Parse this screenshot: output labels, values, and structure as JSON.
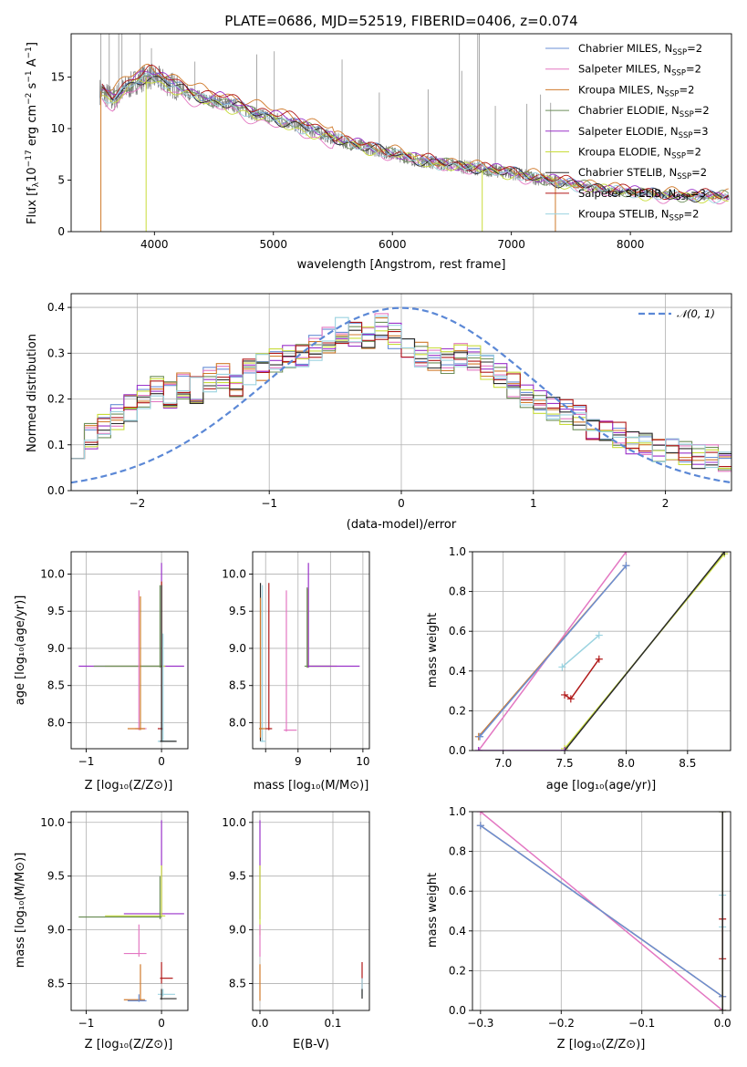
{
  "colors": {
    "chabrier_miles": "#6a8fd6",
    "salpeter_miles": "#e377c2",
    "kroupa_miles": "#d07a2b",
    "chabrier_elodie": "#6e8f5a",
    "salpeter_elodie": "#9a32c9",
    "kroupa_elodie": "#c8dc3a",
    "chabrier_stelib": "#2a2a2a",
    "salpeter_stelib": "#b01818",
    "kroupa_stelib": "#9bd3e0",
    "observed": "#808080",
    "gauss": "#5b88d6"
  },
  "legend_spectrum": [
    {
      "base": "Chabrier MILES, N",
      "sub": "SSP",
      "tail": "=2",
      "color_key": "chabrier_miles"
    },
    {
      "base": "Salpeter MILES, N",
      "sub": "SSP",
      "tail": "=2",
      "color_key": "salpeter_miles"
    },
    {
      "base": "Kroupa MILES, N",
      "sub": "SSP",
      "tail": "=2",
      "color_key": "kroupa_miles"
    },
    {
      "base": "Chabrier ELODIE, N",
      "sub": "SSP",
      "tail": "=2",
      "color_key": "chabrier_elodie"
    },
    {
      "base": "Salpeter ELODIE, N",
      "sub": "SSP",
      "tail": "=3",
      "color_key": "salpeter_elodie"
    },
    {
      "base": "Kroupa ELODIE, N",
      "sub": "SSP",
      "tail": "=2",
      "color_key": "kroupa_elodie"
    },
    {
      "base": "Chabrier STELIB, N",
      "sub": "SSP",
      "tail": "=2",
      "color_key": "chabrier_stelib"
    },
    {
      "base": "Salpeter STELIB, N",
      "sub": "SSP",
      "tail": "=3",
      "color_key": "salpeter_stelib"
    },
    {
      "base": "Kroupa STELIB, N",
      "sub": "SSP",
      "tail": "=2",
      "color_key": "kroupa_stelib"
    }
  ],
  "chart_data": [
    {
      "id": "spectrum",
      "type": "line",
      "title": "PLATE=0686, MJD=52519, FIBERID=0406, z=0.074",
      "xlabel": "wavelength [Angstrom, rest frame]",
      "ylabel_parts": [
        "Flux [f",
        "λ",
        "10",
        "−17",
        " erg cm",
        "−2",
        " s",
        "−1",
        " A",
        "−1",
        "]"
      ],
      "xlim": [
        3300,
        8850
      ],
      "ylim": [
        0,
        19.2
      ],
      "xticks": [
        4000,
        5000,
        6000,
        7000,
        8000
      ],
      "yticks": [
        0,
        5,
        10,
        15
      ],
      "continuum": {
        "x": [
          3550,
          3650,
          3750,
          3850,
          3950,
          4050,
          4150,
          4250,
          4350,
          4450,
          4550,
          4700,
          4850,
          5000,
          5200,
          5400,
          5600,
          5800,
          6000,
          6200,
          6400,
          6600,
          6800,
          7000,
          7200,
          7400,
          7600,
          7800,
          8000,
          8200,
          8400
        ],
        "y": [
          13.6,
          12.8,
          13.8,
          14.6,
          15.1,
          14.7,
          14.2,
          13.7,
          13.1,
          12.7,
          12.6,
          12.1,
          11.4,
          11.0,
          10.3,
          9.5,
          8.7,
          8.1,
          7.6,
          7.0,
          6.6,
          6.3,
          6.0,
          5.7,
          5.2,
          4.8,
          4.4,
          4.1,
          3.8,
          3.6,
          3.4
        ]
      },
      "observed_x_range": [
        3540,
        8830
      ],
      "observed_noise": 0.7,
      "emission_lines": [
        {
          "x": 3550,
          "y": 19.2
        },
        {
          "x": 3620,
          "y": 19.2
        },
        {
          "x": 3700,
          "y": 19.2
        },
        {
          "x": 3727,
          "y": 19.2
        },
        {
          "x": 3880,
          "y": 19.2
        },
        {
          "x": 3975,
          "y": 17.8
        },
        {
          "x": 4340,
          "y": 16.5
        },
        {
          "x": 4860,
          "y": 17.2
        },
        {
          "x": 5007,
          "y": 17.5
        },
        {
          "x": 5577,
          "y": 16.7
        },
        {
          "x": 5890,
          "y": 13.5
        },
        {
          "x": 6300,
          "y": 13.8
        },
        {
          "x": 6563,
          "y": 19.2
        },
        {
          "x": 6583,
          "y": 15.6
        },
        {
          "x": 6717,
          "y": 19.2
        },
        {
          "x": 6730,
          "y": 19.2
        },
        {
          "x": 6865,
          "y": 12.2
        },
        {
          "x": 7130,
          "y": 12.4
        },
        {
          "x": 7245,
          "y": 13.3
        },
        {
          "x": 7330,
          "y": 12.5
        }
      ],
      "models": [
        {
          "color_key": "chabrier_miles",
          "offset": 0.2
        },
        {
          "color_key": "salpeter_miles",
          "offset": -0.6
        },
        {
          "color_key": "kroupa_miles",
          "offset": 0.9
        },
        {
          "color_key": "chabrier_elodie",
          "offset": 0.1
        },
        {
          "color_key": "salpeter_elodie",
          "offset": 0.4
        },
        {
          "color_key": "kroupa_elodie",
          "offset": -0.3
        },
        {
          "color_key": "chabrier_stelib",
          "offset": 0.0
        },
        {
          "color_key": "salpeter_stelib",
          "offset": 0.6
        },
        {
          "color_key": "kroupa_stelib",
          "offset": -0.1
        }
      ],
      "model_drops": [
        {
          "x": 3550,
          "color_key": "kroupa_miles"
        },
        {
          "x": 3930,
          "color_key": "kroupa_elodie"
        },
        {
          "x": 6755,
          "color_key": "kroupa_elodie"
        },
        {
          "x": 7370,
          "color_key": "kroupa_miles"
        }
      ]
    },
    {
      "id": "residuals",
      "type": "line",
      "title": "",
      "xlabel": "(data-model)/error",
      "ylabel": "Normed distribution",
      "xlim": [
        -2.5,
        2.5
      ],
      "ylim": [
        0,
        0.43
      ],
      "xticks": [
        -2,
        -1,
        0,
        1,
        2
      ],
      "yticks": [
        0.0,
        0.1,
        0.2,
        0.3,
        0.4
      ],
      "bin_start": -2.5,
      "bin_width": 0.1,
      "base_hist": [
        0.1,
        0.12,
        0.14,
        0.16,
        0.18,
        0.2,
        0.22,
        0.21,
        0.23,
        0.22,
        0.24,
        0.25,
        0.23,
        0.26,
        0.27,
        0.28,
        0.29,
        0.3,
        0.31,
        0.33,
        0.35,
        0.34,
        0.33,
        0.36,
        0.34,
        0.31,
        0.3,
        0.29,
        0.28,
        0.3,
        0.29,
        0.27,
        0.25,
        0.23,
        0.21,
        0.19,
        0.18,
        0.17,
        0.16,
        0.14,
        0.13,
        0.12,
        0.11,
        0.1,
        0.09,
        0.085,
        0.08,
        0.075,
        0.07,
        0.06
      ],
      "series_color_keys": [
        "chabrier_miles",
        "salpeter_miles",
        "kroupa_miles",
        "chabrier_elodie",
        "salpeter_elodie",
        "kroupa_elodie",
        "chabrier_stelib",
        "salpeter_stelib",
        "kroupa_stelib"
      ],
      "gaussian": {
        "label": "𝒩(0, 1)",
        "mu": 0,
        "sigma": 1
      }
    },
    {
      "id": "age_vs_Z",
      "type": "scatter",
      "xlabel": "Z [log₁₀(Z/Z⊙)]",
      "ylabel": "age  [log₁₀(age/yr)]",
      "xlim": [
        -1.2,
        0.35
      ],
      "ylim": [
        7.65,
        10.3
      ],
      "xticks": [
        -1,
        0
      ],
      "yticks": [
        8.0,
        8.5,
        9.0,
        9.5,
        10.0
      ],
      "crosses": [
        {
          "color_key": "salpeter_elodie",
          "cx": 0.0,
          "x0": -1.1,
          "x1": 0.3,
          "cy": 8.76,
          "y0": 8.74,
          "y1": 10.15
        },
        {
          "color_key": "kroupa_elodie",
          "cx": 0.0,
          "x0": -0.75,
          "x1": 0.05,
          "cy": 8.76,
          "y0": 8.74,
          "y1": 9.9
        },
        {
          "color_key": "chabrier_elodie",
          "cx": -0.02,
          "x0": -0.9,
          "x1": 0.0,
          "cy": 8.76,
          "y0": 8.74,
          "y1": 9.85
        },
        {
          "color_key": "salpeter_miles",
          "cx": -0.3,
          "x0": -0.35,
          "x1": -0.2,
          "cy": 7.92,
          "y0": 7.9,
          "y1": 9.78
        },
        {
          "color_key": "kroupa_miles",
          "cx": -0.28,
          "x0": -0.45,
          "x1": -0.22,
          "cy": 7.92,
          "y0": 7.9,
          "y1": 9.7
        },
        {
          "color_key": "salpeter_stelib",
          "cx": 0.0,
          "x0": -0.05,
          "x1": 0.02,
          "cy": 7.92,
          "y0": 7.9,
          "y1": 9.9
        },
        {
          "color_key": "kroupa_stelib",
          "cx": 0.02,
          "x0": -0.05,
          "x1": 0.18,
          "cy": 7.75,
          "y0": 7.74,
          "y1": 9.2
        },
        {
          "color_key": "chabrier_stelib",
          "cx": 0.0,
          "x0": -0.02,
          "x1": 0.2,
          "cy": 7.75,
          "y0": 7.74,
          "y1": 9.85
        }
      ]
    },
    {
      "id": "age_vs_mass",
      "type": "scatter",
      "xlabel": "mass [log₁₀(M/M⊙)]",
      "ylabel": "",
      "xlim": [
        8.3,
        10.1
      ],
      "ylim": [
        7.65,
        10.3
      ],
      "xticks": [
        8.5,
        9.0,
        9.5,
        10.0
      ],
      "xticklabels": [
        "",
        "9",
        "",
        "10"
      ],
      "yticks": [
        8.0,
        8.5,
        9.0,
        9.5,
        10.0
      ],
      "crosses": [
        {
          "color_key": "chabrier_stelib",
          "cx": 8.42,
          "x0": 8.4,
          "x1": 8.45,
          "cy": 7.92,
          "y0": 7.75,
          "y1": 9.88
        },
        {
          "color_key": "kroupa_stelib",
          "cx": 8.45,
          "x0": 8.42,
          "x1": 8.5,
          "cy": 7.75,
          "y0": 7.74,
          "y1": 9.85
        },
        {
          "color_key": "kroupa_miles",
          "cx": 8.42,
          "x0": 8.4,
          "x1": 8.5,
          "cy": 7.92,
          "y0": 7.8,
          "y1": 9.68
        },
        {
          "color_key": "salpeter_stelib",
          "cx": 8.55,
          "x0": 8.5,
          "x1": 8.6,
          "cy": 7.92,
          "y0": 7.9,
          "y1": 9.88
        },
        {
          "color_key": "salpeter_miles",
          "cx": 8.82,
          "x0": 8.78,
          "x1": 8.98,
          "cy": 7.9,
          "y0": 7.88,
          "y1": 9.78
        },
        {
          "color_key": "kroupa_elodie",
          "cx": 9.15,
          "x0": 9.13,
          "x1": 9.6,
          "cy": 8.76,
          "y0": 8.74,
          "y1": 9.8
        },
        {
          "color_key": "chabrier_elodie",
          "cx": 9.14,
          "x0": 9.1,
          "x1": 9.5,
          "cy": 8.76,
          "y0": 8.74,
          "y1": 9.82
        },
        {
          "color_key": "salpeter_elodie",
          "cx": 9.16,
          "x0": 9.15,
          "x1": 9.95,
          "cy": 8.76,
          "y0": 8.74,
          "y1": 10.15
        }
      ]
    },
    {
      "id": "weight_vs_age",
      "type": "line",
      "xlabel": "age  [log₁₀(age/yr)]",
      "ylabel": "mass weight",
      "xlim": [
        6.75,
        8.85
      ],
      "ylim": [
        0,
        1.0
      ],
      "xticks": [
        7.0,
        7.5,
        8.0,
        8.5
      ],
      "yticks": [
        0.0,
        0.2,
        0.4,
        0.6,
        0.8,
        1.0
      ],
      "series": [
        {
          "color_key": "salpeter_miles",
          "x": [
            6.8,
            8.0
          ],
          "y": [
            0.0,
            1.0
          ]
        },
        {
          "color_key": "kroupa_miles",
          "x": [
            6.8,
            8.0
          ],
          "y": [
            0.07,
            0.93
          ]
        },
        {
          "color_key": "chabrier_miles",
          "x": [
            6.81,
            8.0
          ],
          "y": [
            0.07,
            0.93
          ]
        },
        {
          "color_key": "kroupa_stelib",
          "x": [
            7.48,
            7.78
          ],
          "y": [
            0.42,
            0.58
          ]
        },
        {
          "color_key": "salpeter_stelib",
          "x": [
            7.5,
            7.55,
            7.78
          ],
          "y": [
            0.28,
            0.26,
            0.46
          ]
        },
        {
          "color_key": "kroupa_elodie",
          "x": [
            7.5,
            8.8
          ],
          "y": [
            0.01,
            0.99
          ]
        },
        {
          "color_key": "chabrier_stelib",
          "x": [
            7.5,
            8.8
          ],
          "y": [
            0.0,
            1.0
          ]
        },
        {
          "color_key": "salpeter_elodie",
          "x": [
            6.8,
            7.5
          ],
          "y": [
            0.0,
            0.0
          ]
        }
      ]
    },
    {
      "id": "mass_vs_Z",
      "type": "scatter",
      "xlabel": "Z [log₁₀(Z/Z⊙)]",
      "ylabel": "mass [log₁₀(M/M⊙)]",
      "xlim": [
        -1.2,
        0.35
      ],
      "ylim": [
        8.25,
        10.1
      ],
      "xticks": [
        -1,
        0
      ],
      "yticks": [
        8.5,
        9.0,
        9.5,
        10.0
      ],
      "crosses": [
        {
          "color_key": "salpeter_elodie",
          "cx": 0.0,
          "x0": -0.5,
          "x1": 0.3,
          "cy": 9.15,
          "y0": 9.13,
          "y1": 10.02
        },
        {
          "color_key": "kroupa_elodie",
          "cx": 0.0,
          "x0": -0.75,
          "x1": 0.05,
          "cy": 9.13,
          "y0": 9.12,
          "y1": 9.6
        },
        {
          "color_key": "chabrier_elodie",
          "cx": -0.02,
          "x0": -1.1,
          "x1": 0.0,
          "cy": 9.12,
          "y0": 9.1,
          "y1": 9.5
        },
        {
          "color_key": "salpeter_miles",
          "cx": -0.3,
          "x0": -0.5,
          "x1": -0.2,
          "cy": 8.78,
          "y0": 8.75,
          "y1": 9.05
        },
        {
          "color_key": "kroupa_miles",
          "cx": -0.28,
          "x0": -0.5,
          "x1": -0.22,
          "cy": 8.35,
          "y0": 8.34,
          "y1": 8.68
        },
        {
          "color_key": "chabrier_miles",
          "cx": -0.3,
          "x0": -0.45,
          "x1": -0.2,
          "cy": 8.34,
          "y0": 8.33,
          "y1": 8.4
        },
        {
          "color_key": "salpeter_stelib",
          "cx": 0.0,
          "x0": -0.02,
          "x1": 0.15,
          "cy": 8.55,
          "y0": 8.5,
          "y1": 8.7
        },
        {
          "color_key": "kroupa_stelib",
          "cx": 0.02,
          "x0": -0.05,
          "x1": 0.18,
          "cy": 8.4,
          "y0": 8.38,
          "y1": 8.45
        },
        {
          "color_key": "chabrier_stelib",
          "cx": 0.0,
          "x0": -0.02,
          "x1": 0.2,
          "cy": 8.36,
          "y0": 8.35,
          "y1": 8.45
        }
      ]
    },
    {
      "id": "mass_vs_EBV",
      "type": "scatter",
      "xlabel": "E(B-V)",
      "ylabel": "",
      "xlim": [
        -0.01,
        0.15
      ],
      "ylim": [
        8.25,
        10.1
      ],
      "xticks": [
        0.0,
        0.1
      ],
      "yticks": [
        8.5,
        9.0,
        9.5,
        10.0
      ],
      "crosses": [
        {
          "color_key": "salpeter_elodie",
          "cx": 0.0,
          "x0": 0.0,
          "x1": 0.0,
          "cy": 9.5,
          "y0": 9.1,
          "y1": 10.02
        },
        {
          "color_key": "kroupa_elodie",
          "cx": 0.0,
          "x0": 0.0,
          "x1": 0.0,
          "cy": 9.3,
          "y0": 8.95,
          "y1": 9.6
        },
        {
          "color_key": "salpeter_miles",
          "cx": 0.0,
          "x0": 0.0,
          "x1": 0.0,
          "cy": 8.85,
          "y0": 8.75,
          "y1": 9.05
        },
        {
          "color_key": "kroupa_miles",
          "cx": 0.0,
          "x0": 0.0,
          "x1": 0.0,
          "cy": 8.5,
          "y0": 8.34,
          "y1": 8.68
        },
        {
          "color_key": "salpeter_stelib",
          "cx": 0.14,
          "x0": 0.14,
          "x1": 0.14,
          "cy": 8.55,
          "y0": 8.45,
          "y1": 8.7
        },
        {
          "color_key": "kroupa_stelib",
          "cx": 0.14,
          "x0": 0.14,
          "x1": 0.14,
          "cy": 8.42,
          "y0": 8.38,
          "y1": 8.55
        },
        {
          "color_key": "chabrier_stelib",
          "cx": 0.14,
          "x0": 0.14,
          "x1": 0.14,
          "cy": 8.4,
          "y0": 8.36,
          "y1": 8.45
        }
      ]
    },
    {
      "id": "weight_vs_Z",
      "type": "line",
      "xlabel": "Z [log₁₀(Z/Z⊙)]",
      "ylabel": "mass weight",
      "xlim": [
        -0.31,
        0.01
      ],
      "ylim": [
        0,
        1.0
      ],
      "xticks": [
        -0.3,
        -0.2,
        -0.1,
        0.0
      ],
      "yticks": [
        0.0,
        0.2,
        0.4,
        0.6,
        0.8,
        1.0
      ],
      "series": [
        {
          "color_key": "salpeter_miles",
          "x": [
            -0.3,
            0.0
          ],
          "y": [
            1.0,
            0.0
          ]
        },
        {
          "color_key": "kroupa_miles",
          "x": [
            -0.3,
            0.0
          ],
          "y": [
            0.93,
            0.07
          ]
        },
        {
          "color_key": "chabrier_miles",
          "x": [
            -0.3,
            0.0
          ],
          "y": [
            0.93,
            0.07
          ]
        },
        {
          "color_key": "kroupa_elodie",
          "x": [
            0.0,
            0.0
          ],
          "y": [
            0.0,
            1.0
          ]
        },
        {
          "color_key": "kroupa_stelib",
          "x": [
            0.0,
            0.0
          ],
          "y": [
            0.42,
            0.58
          ]
        },
        {
          "color_key": "salpeter_stelib",
          "x": [
            0.0,
            0.0
          ],
          "y": [
            0.26,
            0.46
          ]
        },
        {
          "color_key": "chabrier_stelib",
          "x": [
            0.0,
            0.0
          ],
          "y": [
            0.0,
            1.0
          ]
        }
      ]
    }
  ]
}
